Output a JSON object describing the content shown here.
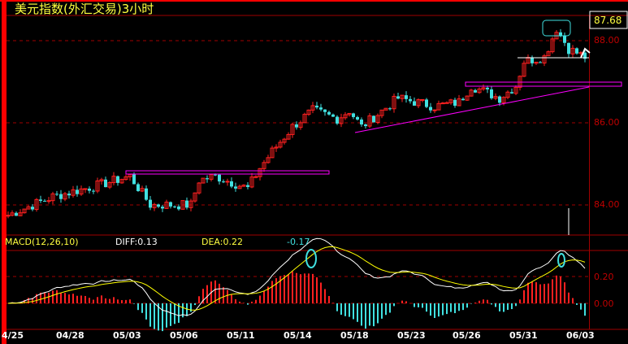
{
  "title": "美元指数(外汇交易)3小时",
  "current_price": "87.68",
  "price_axis": [
    "88.00",
    "86.00",
    "84.00"
  ],
  "macd": {
    "label": "MACD(12,26,10)",
    "diff": "DIFF:0.13",
    "dea": "DEA:0.22",
    "macd": "-0.17",
    "axis": [
      "0.20",
      "0.00"
    ]
  },
  "dates": [
    "4/25",
    "04/28",
    "05/03",
    "05/06",
    "05/11",
    "05/14",
    "05/18",
    "05/23",
    "05/26",
    "05/31",
    "06/03"
  ],
  "colors": {
    "up": "#ff2020",
    "down": "#40e0e0",
    "grid": "#a00000",
    "axis_text": "#c00000",
    "title": "#ffff40",
    "annotation": "#ff00ff",
    "diff": "#ffffff",
    "dea": "#ffff00"
  },
  "chart_data": {
    "type": "candlestick",
    "interval": "3 hours",
    "price_range": [
      83.3,
      88.7
    ],
    "approx_path": [
      [
        0,
        83.75
      ],
      [
        11,
        84.2
      ],
      [
        23,
        84.5
      ],
      [
        30,
        84.7
      ],
      [
        35,
        84.0
      ],
      [
        45,
        84.0
      ],
      [
        47,
        84.6
      ],
      [
        51,
        84.7
      ],
      [
        59,
        84.4
      ],
      [
        62,
        84.9
      ],
      [
        65,
        85.3
      ],
      [
        70,
        85.9
      ],
      [
        75,
        86.3
      ],
      [
        81,
        86.1
      ],
      [
        84,
        86.3
      ],
      [
        87,
        85.9
      ],
      [
        96,
        86.6
      ],
      [
        105,
        86.4
      ],
      [
        111,
        86.5
      ],
      [
        114,
        86.9
      ],
      [
        121,
        86.6
      ],
      [
        125,
        86.9
      ],
      [
        127,
        87.5
      ],
      [
        132,
        87.6
      ],
      [
        135,
        88.3
      ],
      [
        138,
        87.8
      ],
      [
        142,
        87.6
      ]
    ]
  }
}
